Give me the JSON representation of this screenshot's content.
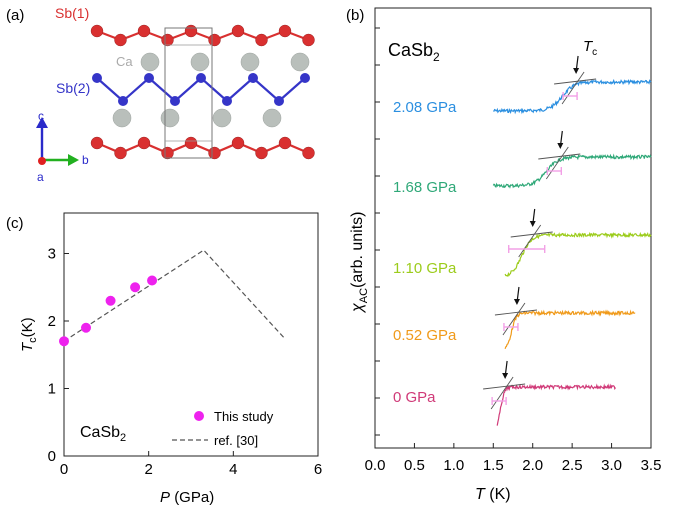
{
  "panel_a": {
    "label": "(a)",
    "sb1_label": "Sb(1)",
    "sb2_label": "Sb(2)",
    "ca_label": "Ca",
    "axis_c": "c",
    "axis_b": "b",
    "axis_a": "a",
    "colors": {
      "sb1": "#d93030",
      "sb2": "#3535c8",
      "ca": "#b9bfbb"
    }
  },
  "panel_c": {
    "label": "(c)",
    "material_main": "CaSb",
    "material_sub": "2",
    "legend": {
      "study": "This study",
      "ref": "ref. [30]"
    },
    "xlabel_main": "P",
    "xlabel_unit": "(GPa)",
    "ylabel_main": "T",
    "ylabel_sub": "c",
    "ylabel_unit": "(K)",
    "xticks": [
      "0",
      "2",
      "4",
      "6"
    ],
    "yticks": [
      "0",
      "1",
      "2",
      "3"
    ]
  },
  "panel_b": {
    "label": "(b)",
    "material_main": "CaSb",
    "material_sub": "2",
    "tc_main": "T",
    "tc_sub": "c",
    "ylabel_main": "χ",
    "ylabel_sub": "AC",
    "ylabel_unit": "(arb. units)",
    "xlabel_main": "T",
    "xlabel_unit": "(K)",
    "xticks": [
      "0.0",
      "0.5",
      "1.0",
      "1.5",
      "2.0",
      "2.5",
      "3.0",
      "3.5"
    ]
  },
  "chart_data": [
    {
      "type": "scatter",
      "panel": "c",
      "xlim": [
        0,
        6
      ],
      "ylim": [
        0,
        3.6
      ],
      "series": [
        {
          "name": "This study",
          "color": "#ee22ee",
          "x": [
            0,
            0.52,
            1.1,
            1.68,
            2.08
          ],
          "y": [
            1.7,
            1.9,
            2.3,
            2.5,
            2.6
          ]
        },
        {
          "name": "ref. [30]",
          "style": "dashed",
          "color": "#555555",
          "x": [
            0,
            3.3,
            5.2
          ],
          "y": [
            1.7,
            3.05,
            1.75
          ]
        }
      ]
    },
    {
      "type": "line",
      "panel": "b",
      "xlim": [
        0,
        3.5
      ],
      "series": [
        {
          "name": "2.08 GPa",
          "color": "#2b8fe0",
          "x_start": 1.5,
          "x_end": 3.5,
          "tc": 2.55,
          "width": 0.35,
          "amp": 0.78
        },
        {
          "name": "1.68 GPa",
          "color": "#2fa878",
          "x_start": 1.5,
          "x_end": 3.5,
          "tc": 2.35,
          "width": 0.35,
          "amp": 0.8
        },
        {
          "name": "1.10 GPa",
          "color": "#9ccc1c",
          "x_start": 1.65,
          "x_end": 3.5,
          "tc": 2.0,
          "width": 0.28,
          "amp": 0.95
        },
        {
          "name": "0.52 GPa",
          "color": "#f09a1a",
          "x_start": 1.65,
          "x_end": 3.3,
          "tc": 1.8,
          "width": 0.14,
          "amp": 0.95
        },
        {
          "name": "0 GPa",
          "color": "#d03a78",
          "x_start": 1.55,
          "x_end": 3.05,
          "tc": 1.65,
          "width": 0.12,
          "amp": 0.95
        }
      ]
    }
  ]
}
